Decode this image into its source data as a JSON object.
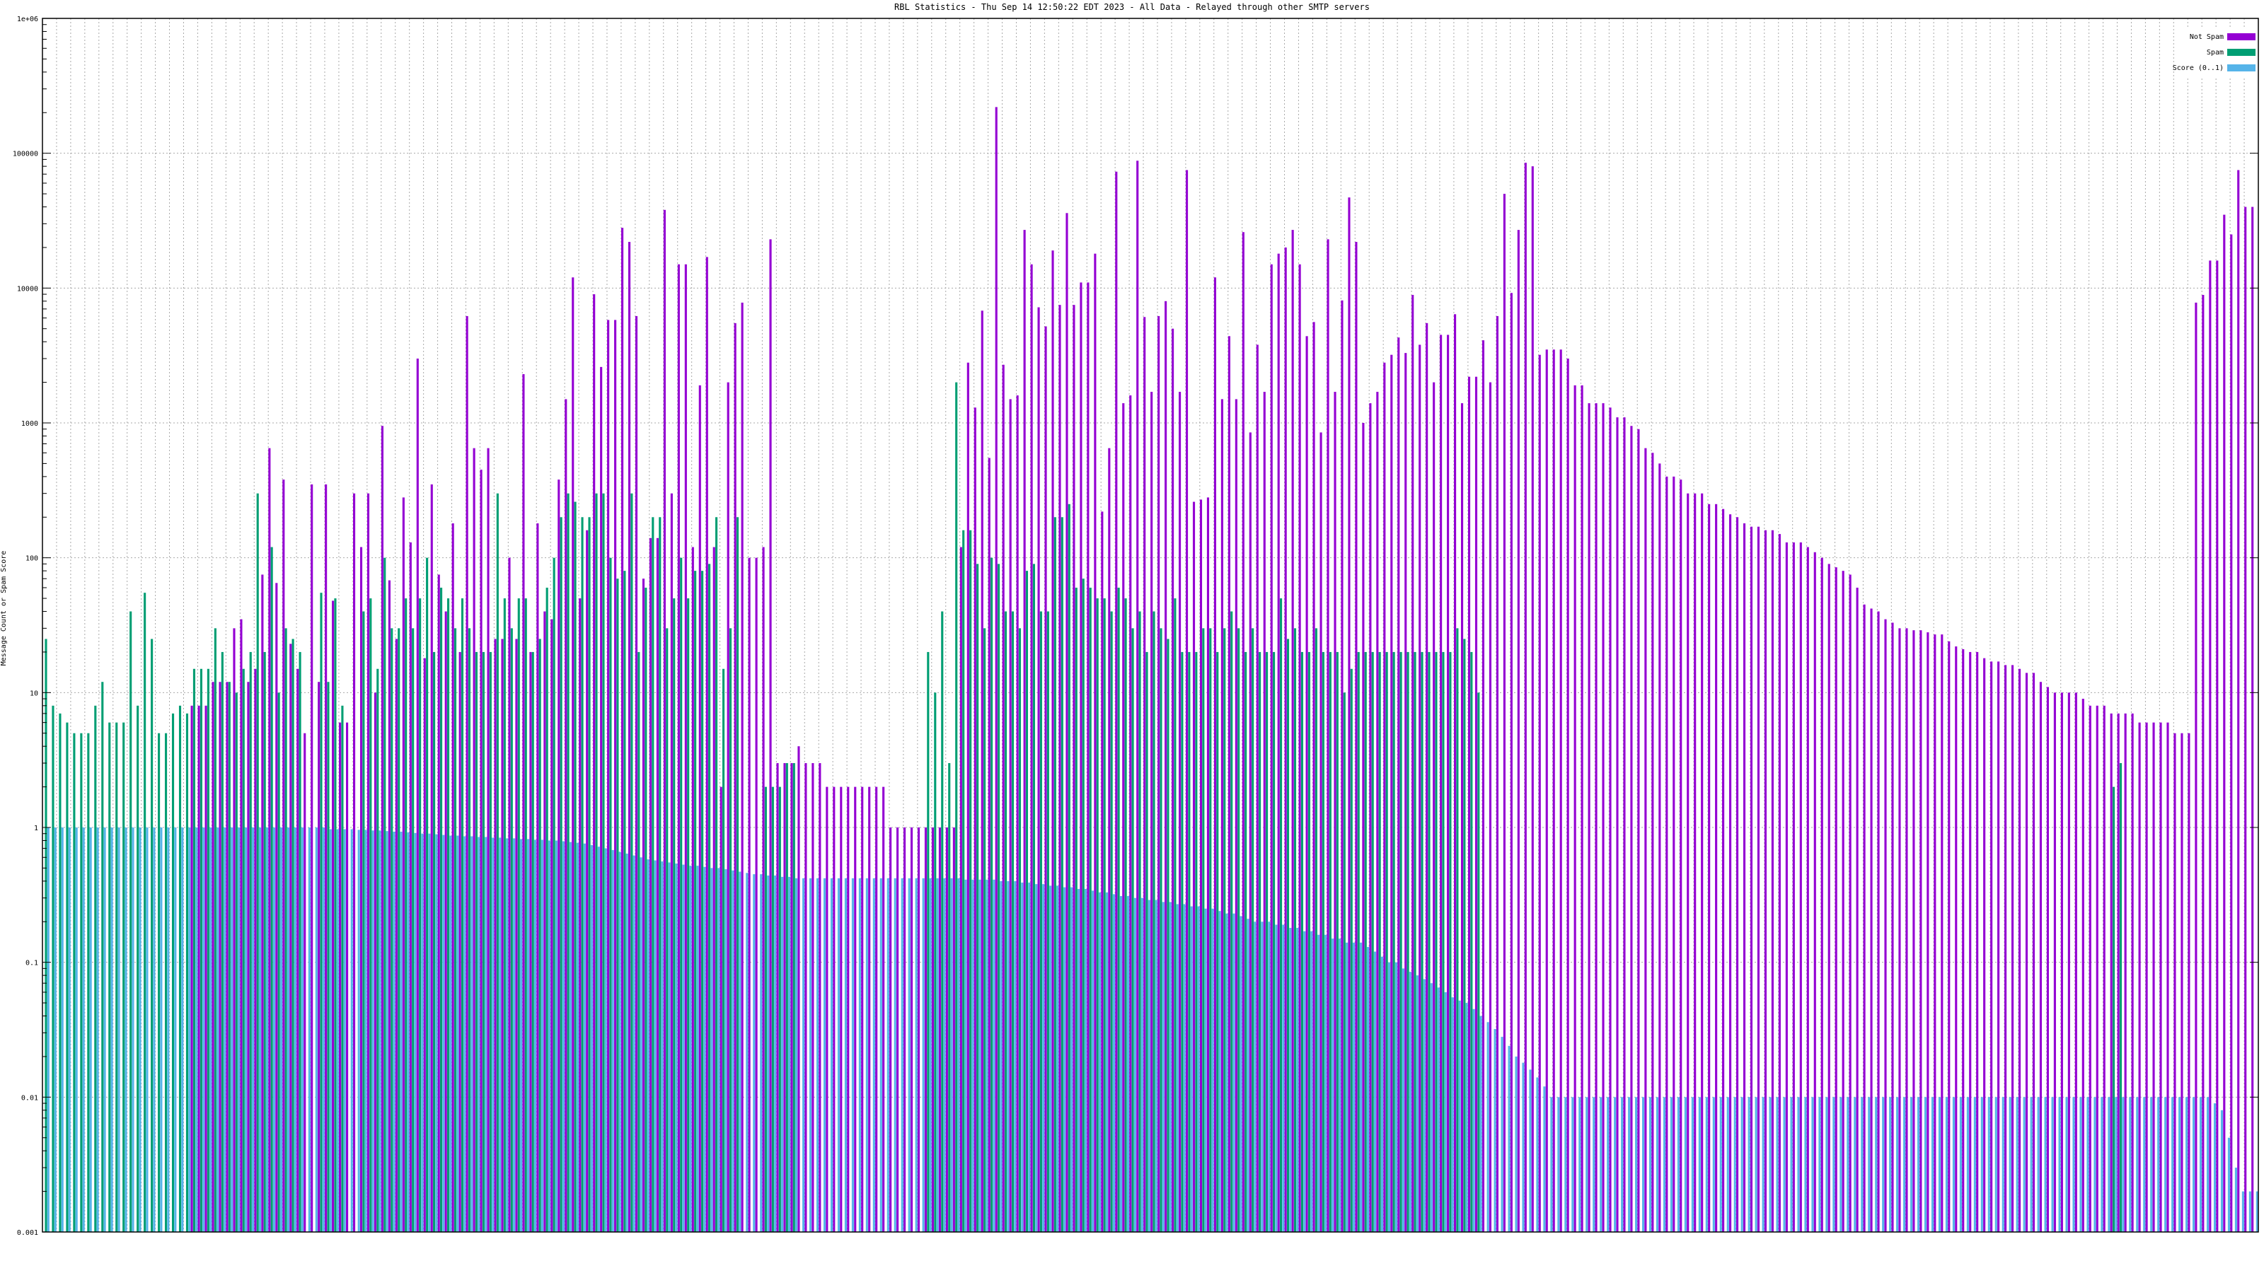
{
  "chart_data": {
    "type": "bar",
    "title": "RBL Statistics - Thu Sep 14 12:50:22 EDT 2023 - All Data - Relayed through other SMTP servers",
    "ylabel": "Message Count or Spam Score",
    "y_scale": "log",
    "ylim": [
      0.001,
      1000000
    ],
    "y_ticks": [
      {
        "value": 0.001,
        "label": "0.001"
      },
      {
        "value": 0.01,
        "label": "0.01"
      },
      {
        "value": 0.1,
        "label": "0.1"
      },
      {
        "value": 1,
        "label": "1"
      },
      {
        "value": 10,
        "label": "10"
      },
      {
        "value": 100,
        "label": "100"
      },
      {
        "value": 1000,
        "label": "1000"
      },
      {
        "value": 10000,
        "label": "10000"
      },
      {
        "value": 100000,
        "label": "100000"
      },
      {
        "value": 1000000,
        "label": "1e+06"
      }
    ],
    "grid": true,
    "legend_position": "top-right",
    "colors": {
      "not_spam": "#9400d3",
      "spam": "#009e73",
      "score": "#56b4e9"
    },
    "series": [
      {
        "name": "Not Spam",
        "key": "not_spam"
      },
      {
        "name": "Spam",
        "key": "spam"
      },
      {
        "name": "Score (0..1)",
        "key": "score"
      }
    ],
    "not_spam": [
      0.001,
      0.001,
      0.001,
      0.001,
      0.001,
      0.001,
      0.001,
      0.001,
      0.001,
      0.001,
      0.001,
      0.001,
      0.001,
      0.001,
      0.001,
      0.001,
      0.001,
      0.001,
      0.001,
      0.001,
      0.001,
      8,
      8,
      8,
      12,
      12,
      12,
      30,
      35,
      12,
      15,
      75,
      650,
      65,
      380,
      23,
      15,
      5,
      350,
      12,
      350,
      48,
      6,
      6,
      300,
      120,
      300,
      10,
      950,
      68,
      25,
      280,
      130,
      3000,
      18,
      350,
      75,
      40,
      180,
      20,
      6200,
      650,
      450,
      650,
      25,
      25,
      100,
      25,
      2300,
      20,
      180,
      40,
      35,
      380,
      1500,
      12000,
      50,
      160,
      9000,
      2600,
      5800,
      5800,
      28000,
      22000,
      6200,
      70,
      140,
      140,
      38000,
      300,
      15000,
      15000,
      120,
      1900,
      17000,
      120,
      2,
      2000,
      5500,
      7800,
      100,
      100,
      120,
      23000,
      3,
      3,
      3,
      4,
      3,
      3,
      3,
      2,
      2,
      2,
      2,
      2,
      2,
      2,
      2,
      2,
      1,
      1,
      1,
      1,
      1,
      1,
      1,
      1,
      1,
      1,
      120,
      2800,
      1300,
      6800,
      550,
      220000,
      2700,
      1500,
      1600,
      27000,
      15000,
      7200,
      5200,
      19000,
      7500,
      36000,
      7500,
      11000,
      11000,
      18000,
      220,
      650,
      73000,
      1400,
      1600,
      88000,
      6100,
      1700,
      6200,
      8000,
      5000,
      1700,
      75000,
      260,
      270,
      280,
      12000,
      1500,
      4400,
      1500,
      26000,
      850,
      3800,
      1700,
      15000,
      18000,
      20000,
      27000,
      15000,
      4400,
      5600,
      850,
      23000,
      1700,
      8100,
      47000,
      22000,
      1000,
      1400,
      1700,
      2800,
      3200,
      4300,
      3300,
      8900,
      3800,
      5500,
      2000,
      4500,
      4500,
      6400,
      1400,
      2200,
      2200,
      4100,
      2000,
      6200,
      50000,
      9200,
      27000,
      85000,
      80000,
      3200,
      3500,
      3500,
      3500,
      3000,
      1900,
      1900,
      1400,
      1400,
      1400,
      1300,
      1100,
      1100,
      950,
      900,
      650,
      600,
      500,
      400,
      400,
      380,
      300,
      300,
      300,
      250,
      250,
      230,
      210,
      200,
      180,
      170,
      170,
      160,
      160,
      150,
      130,
      130,
      130,
      120,
      110,
      100,
      90,
      85,
      80,
      75,
      60,
      45,
      42,
      40,
      35,
      33,
      30,
      30,
      29,
      29,
      28,
      27,
      27,
      24,
      22,
      21,
      20,
      20,
      18,
      17,
      17,
      16,
      16,
      15,
      14,
      14,
      12,
      11,
      10,
      10,
      10,
      10,
      9,
      8,
      8,
      8,
      7,
      7,
      7,
      7,
      6,
      6,
      6,
      6,
      6,
      5,
      5,
      5,
      7800,
      8900,
      16000,
      16000,
      35000,
      25000,
      75000,
      40000,
      40000
    ],
    "spam": [
      25,
      8,
      7,
      6,
      5,
      5,
      5,
      8,
      12,
      6,
      6,
      6,
      40,
      8,
      55,
      25,
      5,
      5,
      7,
      8,
      7,
      15,
      15,
      15,
      30,
      20,
      12,
      10,
      15,
      20,
      300,
      20,
      120,
      10,
      30,
      25,
      20,
      0.001,
      0.001,
      55,
      12,
      50,
      8,
      0.001,
      0.001,
      40,
      50,
      15,
      100,
      30,
      30,
      50,
      30,
      50,
      100,
      20,
      60,
      50,
      30,
      50,
      30,
      20,
      20,
      20,
      300,
      50,
      30,
      50,
      50,
      20,
      25,
      60,
      100,
      200,
      300,
      260,
      200,
      200,
      300,
      300,
      100,
      70,
      80,
      300,
      20,
      60,
      200,
      200,
      30,
      50,
      100,
      50,
      80,
      80,
      90,
      200,
      15,
      30,
      200,
      0.001,
      0.001,
      0.001,
      2,
      2,
      2,
      3,
      3,
      0.001,
      0.001,
      0.001,
      0.001,
      0.001,
      0.001,
      0.001,
      0.001,
      0.001,
      0.001,
      0.001,
      0.001,
      0.001,
      0.001,
      0.001,
      0.001,
      0.001,
      0.001,
      20,
      10,
      40,
      3,
      2000,
      160,
      160,
      90,
      30,
      100,
      90,
      40,
      40,
      30,
      80,
      90,
      40,
      40,
      200,
      200,
      250,
      60,
      70,
      60,
      50,
      50,
      40,
      60,
      50,
      30,
      40,
      20,
      40,
      30,
      25,
      50,
      20,
      20,
      20,
      30,
      30,
      20,
      30,
      40,
      30,
      20,
      30,
      20,
      20,
      20,
      50,
      25,
      30,
      20,
      20,
      30,
      20,
      20,
      20,
      10,
      15,
      20,
      20,
      20,
      20,
      20,
      20,
      20,
      20,
      20,
      20,
      20,
      20,
      20,
      20,
      30,
      25,
      20,
      10,
      0.001,
      0.001,
      0.001,
      0.001,
      0.001,
      0.001,
      0.001,
      0.001,
      0.001,
      0.001,
      0.001,
      0.001,
      0.001,
      0.001,
      0.001,
      0.001,
      0.001,
      0.001,
      0.001,
      0.001,
      0.001,
      0.001,
      0.001,
      0.001,
      0.001,
      0.001,
      0.001,
      0.001,
      0.001,
      0.001,
      0.001,
      0.001,
      0.001,
      0.001,
      0.001,
      0.001,
      0.001,
      0.001,
      0.001,
      0.001,
      0.001,
      0.001,
      0.001,
      0.001,
      0.001,
      0.001,
      0.001,
      0.001,
      0.001,
      0.001,
      0.001,
      0.001,
      0.001,
      0.001,
      0.001,
      0.001,
      0.001,
      0.001,
      0.001,
      0.001,
      0.001,
      0.001,
      0.001,
      0.001,
      0.001,
      0.001,
      0.001,
      0.001,
      0.001,
      0.001,
      0.001,
      0.001,
      0.001,
      0.001,
      0.001,
      0.001,
      0.001,
      0.001,
      0.001,
      0.001,
      0.001,
      0.001,
      0.001,
      0.001,
      0.001,
      0.001,
      0.001,
      0.001,
      0.001,
      2,
      3,
      0.001,
      0.001,
      0.001,
      0.001
    ],
    "score": [
      1,
      1,
      1,
      1,
      1,
      1,
      1,
      1,
      1,
      1,
      1,
      1,
      1,
      1,
      1,
      1,
      1,
      1,
      1,
      1,
      1,
      1,
      1,
      1,
      1,
      1,
      1,
      1,
      1,
      1,
      1,
      1,
      1,
      1,
      1,
      1,
      1,
      1,
      1,
      1,
      0.97,
      0.97,
      0.97,
      0.97,
      0.96,
      0.96,
      0.95,
      0.95,
      0.94,
      0.93,
      0.93,
      0.92,
      0.91,
      0.9,
      0.9,
      0.89,
      0.88,
      0.87,
      0.87,
      0.86,
      0.86,
      0.85,
      0.85,
      0.84,
      0.84,
      0.83,
      0.83,
      0.82,
      0.82,
      0.81,
      0.81,
      0.8,
      0.8,
      0.79,
      0.78,
      0.77,
      0.76,
      0.74,
      0.72,
      0.7,
      0.68,
      0.66,
      0.64,
      0.62,
      0.6,
      0.58,
      0.57,
      0.56,
      0.55,
      0.54,
      0.53,
      0.52,
      0.52,
      0.51,
      0.5,
      0.5,
      0.49,
      0.48,
      0.47,
      0.46,
      0.45,
      0.45,
      0.44,
      0.44,
      0.43,
      0.43,
      0.42,
      0.42,
      0.42,
      0.42,
      0.42,
      0.42,
      0.42,
      0.42,
      0.42,
      0.42,
      0.42,
      0.42,
      0.42,
      0.42,
      0.42,
      0.42,
      0.42,
      0.42,
      0.42,
      0.42,
      0.42,
      0.42,
      0.42,
      0.42,
      0.41,
      0.41,
      0.41,
      0.41,
      0.41,
      0.4,
      0.4,
      0.4,
      0.39,
      0.39,
      0.38,
      0.38,
      0.37,
      0.37,
      0.36,
      0.36,
      0.35,
      0.35,
      0.34,
      0.33,
      0.33,
      0.32,
      0.31,
      0.31,
      0.3,
      0.3,
      0.29,
      0.29,
      0.28,
      0.28,
      0.27,
      0.27,
      0.26,
      0.26,
      0.25,
      0.25,
      0.24,
      0.23,
      0.23,
      0.22,
      0.21,
      0.2,
      0.2,
      0.2,
      0.19,
      0.19,
      0.18,
      0.18,
      0.17,
      0.17,
      0.16,
      0.16,
      0.15,
      0.15,
      0.14,
      0.14,
      0.14,
      0.13,
      0.12,
      0.11,
      0.1,
      0.1,
      0.09,
      0.085,
      0.08,
      0.075,
      0.07,
      0.065,
      0.06,
      0.055,
      0.052,
      0.05,
      0.045,
      0.04,
      0.036,
      0.032,
      0.028,
      0.024,
      0.02,
      0.018,
      0.016,
      0.014,
      0.012,
      0.01,
      0.01,
      0.01,
      0.01,
      0.01,
      0.01,
      0.01,
      0.01,
      0.01,
      0.01,
      0.01,
      0.01,
      0.01,
      0.01,
      0.01,
      0.01,
      0.01,
      0.01,
      0.01,
      0.01,
      0.01,
      0.01,
      0.01,
      0.01,
      0.01,
      0.01,
      0.01,
      0.01,
      0.01,
      0.01,
      0.01,
      0.01,
      0.01,
      0.01,
      0.01,
      0.01,
      0.01,
      0.01,
      0.01,
      0.01,
      0.01,
      0.01,
      0.01,
      0.01,
      0.01,
      0.01,
      0.01,
      0.01,
      0.01,
      0.01,
      0.01,
      0.01,
      0.01,
      0.01,
      0.01,
      0.01,
      0.01,
      0.01,
      0.01,
      0.01,
      0.01,
      0.01,
      0.01,
      0.01,
      0.01,
      0.01,
      0.01,
      0.01,
      0.01,
      0.01,
      0.01,
      0.01,
      0.01,
      0.01,
      0.01,
      0.01,
      0.01,
      0.01,
      0.01,
      0.01,
      0.01,
      0.01,
      0.01,
      0.01,
      0.01,
      0.01,
      0.01,
      0.01,
      0.01,
      0.01,
      0.01,
      0.01,
      0.01,
      0.01,
      0.009,
      0.008,
      0.005,
      0.003,
      0.002,
      0.002,
      0.002
    ]
  }
}
